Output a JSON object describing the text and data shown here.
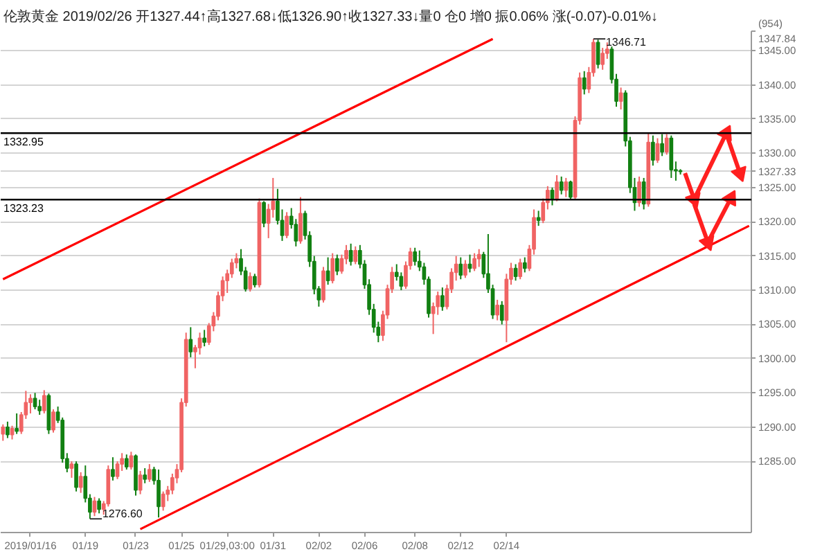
{
  "chart_data": {
    "type": "candlestick",
    "title": "伦敦黄金 2019/02/26 开1327.44↑高1327.68↓低1326.90↑收1327.33↓量0 仓0 增0 振0.06% 涨(-0.07)-0.01%↓",
    "categories": [
      null,
      null,
      null,
      null,
      null,
      null,
      "2019/01/16",
      null,
      null,
      null,
      null,
      null,
      null,
      null,
      null,
      null,
      null,
      null,
      "01/19",
      null,
      null,
      null,
      null,
      null,
      null,
      null,
      null,
      null,
      null,
      "01/23",
      null,
      null,
      null,
      null,
      null,
      null,
      null,
      null,
      null,
      "01/25",
      null,
      null,
      null,
      null,
      null,
      null,
      null,
      null,
      null,
      "01/29,03:00",
      null,
      null,
      null,
      null,
      null,
      null,
      null,
      null,
      null,
      "01/31",
      null,
      null,
      null,
      null,
      null,
      null,
      null,
      null,
      null,
      "02/02",
      null,
      null,
      null,
      null,
      null,
      null,
      null,
      null,
      null,
      "02/06",
      null,
      null,
      null,
      null,
      null,
      null,
      null,
      null,
      null,
      null,
      "02/08",
      null,
      null,
      null,
      null,
      null,
      null,
      null,
      null,
      null,
      "02/12",
      null,
      null,
      null,
      null,
      null,
      null,
      null,
      null,
      null,
      "02/14",
      null,
      null,
      null,
      null,
      null,
      null,
      null,
      null,
      null,
      null,
      null,
      null,
      null,
      null,
      null,
      null,
      null,
      null,
      null,
      null,
      null,
      null,
      null,
      null,
      null,
      null,
      null,
      null,
      null,
      null,
      null,
      null,
      null,
      null,
      null,
      null,
      null,
      null,
      null,
      null,
      null,
      null,
      null,
      null,
      null,
      null,
      null,
      null,
      null,
      null,
      null,
      null,
      null
    ],
    "ohlc": [
      [
        1289.0,
        1290.4,
        1288.0,
        1290.0
      ],
      [
        1290.0,
        1290.8,
        1288.4,
        1288.9
      ],
      [
        1288.9,
        1290.2,
        1288.2,
        1289.8
      ],
      [
        1289.8,
        1292.0,
        1289.0,
        1289.4
      ],
      [
        1289.4,
        1292.2,
        1289.0,
        1291.8
      ],
      [
        1291.8,
        1295.3,
        1291.2,
        1293.6
      ],
      [
        1293.6,
        1294.8,
        1292.0,
        1294.2
      ],
      [
        1294.2,
        1295.0,
        1292.6,
        1293.0
      ],
      [
        1293.0,
        1294.0,
        1291.8,
        1292.4
      ],
      [
        1292.4,
        1295.4,
        1292.0,
        1294.6
      ],
      [
        1294.6,
        1294.9,
        1289.0,
        1289.6
      ],
      [
        1289.6,
        1292.6,
        1289.2,
        1292.2
      ],
      [
        1292.2,
        1293.0,
        1290.6,
        1291.0
      ],
      [
        1291.0,
        1291.4,
        1284.8,
        1285.4
      ],
      [
        1285.4,
        1286.2,
        1283.4,
        1284.0
      ],
      [
        1284.0,
        1285.0,
        1282.6,
        1284.6
      ],
      [
        1284.6,
        1285.0,
        1280.6,
        1281.2
      ],
      [
        1281.2,
        1283.4,
        1280.4,
        1282.8
      ],
      [
        1282.8,
        1284.4,
        1279.0,
        1279.6
      ],
      [
        1279.6,
        1280.2,
        1276.6,
        1277.6
      ],
      [
        1277.6,
        1279.8,
        1277.0,
        1279.2
      ],
      [
        1279.2,
        1279.6,
        1277.4,
        1278.0
      ],
      [
        1278.0,
        1279.2,
        1277.2,
        1278.8
      ],
      [
        1278.8,
        1284.4,
        1278.4,
        1283.8
      ],
      [
        1283.8,
        1285.6,
        1282.2,
        1282.8
      ],
      [
        1282.8,
        1285.0,
        1282.4,
        1284.6
      ],
      [
        1284.6,
        1286.2,
        1283.6,
        1285.4
      ],
      [
        1285.4,
        1286.0,
        1283.8,
        1284.2
      ],
      [
        1284.2,
        1286.4,
        1283.8,
        1285.8
      ],
      [
        1285.8,
        1286.0,
        1280.0,
        1280.8
      ],
      [
        1280.8,
        1283.6,
        1280.2,
        1283.0
      ],
      [
        1283.0,
        1284.0,
        1281.8,
        1282.4
      ],
      [
        1282.4,
        1284.6,
        1282.0,
        1283.8
      ],
      [
        1283.8,
        1284.2,
        1281.6,
        1282.2
      ],
      [
        1282.2,
        1283.8,
        1276.8,
        1278.4
      ],
      [
        1278.4,
        1280.6,
        1277.8,
        1280.2
      ],
      [
        1280.2,
        1281.4,
        1279.2,
        1280.8
      ],
      [
        1280.8,
        1283.2,
        1280.2,
        1282.6
      ],
      [
        1282.6,
        1284.6,
        1281.8,
        1283.8
      ],
      [
        1283.8,
        1294.2,
        1283.4,
        1293.6
      ],
      [
        1293.6,
        1303.8,
        1293.0,
        1302.8
      ],
      [
        1302.8,
        1304.6,
        1300.2,
        1301.0
      ],
      [
        1301.0,
        1302.0,
        1298.6,
        1301.6
      ],
      [
        1301.6,
        1303.8,
        1300.6,
        1303.0
      ],
      [
        1303.0,
        1304.2,
        1301.8,
        1302.4
      ],
      [
        1302.4,
        1305.2,
        1302.0,
        1304.8
      ],
      [
        1304.8,
        1306.8,
        1304.0,
        1306.2
      ],
      [
        1306.2,
        1309.8,
        1305.6,
        1309.2
      ],
      [
        1309.2,
        1312.0,
        1308.4,
        1311.4
      ],
      [
        1311.4,
        1313.0,
        1309.6,
        1312.4
      ],
      [
        1312.4,
        1314.6,
        1311.8,
        1314.0
      ],
      [
        1314.0,
        1315.4,
        1313.2,
        1314.6
      ],
      [
        1314.6,
        1316.0,
        1312.2,
        1312.8
      ],
      [
        1312.8,
        1313.4,
        1309.8,
        1310.2
      ],
      [
        1310.2,
        1312.6,
        1309.8,
        1312.0
      ],
      [
        1312.0,
        1312.4,
        1310.4,
        1310.8
      ],
      [
        1310.8,
        1323.4,
        1310.4,
        1322.8
      ],
      [
        1322.8,
        1323.0,
        1319.2,
        1319.8
      ],
      [
        1319.8,
        1322.6,
        1317.6,
        1321.8
      ],
      [
        1321.8,
        1326.4,
        1320.6,
        1323.0
      ],
      [
        1323.0,
        1324.8,
        1319.6,
        1320.2
      ],
      [
        1320.2,
        1321.8,
        1317.2,
        1318.0
      ],
      [
        1318.0,
        1321.4,
        1317.6,
        1320.8
      ],
      [
        1320.8,
        1322.0,
        1319.0,
        1319.6
      ],
      [
        1319.6,
        1320.4,
        1316.4,
        1317.2
      ],
      [
        1317.2,
        1323.6,
        1316.8,
        1321.2
      ],
      [
        1321.2,
        1321.6,
        1317.4,
        1318.0
      ],
      [
        1318.0,
        1318.6,
        1313.4,
        1314.2
      ],
      [
        1314.2,
        1315.0,
        1309.4,
        1310.2
      ],
      [
        1310.2,
        1310.6,
        1307.6,
        1308.6
      ],
      [
        1308.6,
        1313.4,
        1308.2,
        1312.8
      ],
      [
        1312.8,
        1314.8,
        1310.8,
        1311.4
      ],
      [
        1311.4,
        1315.4,
        1311.0,
        1314.6
      ],
      [
        1314.6,
        1315.2,
        1312.2,
        1312.8
      ],
      [
        1312.8,
        1315.2,
        1312.4,
        1314.6
      ],
      [
        1314.6,
        1316.6,
        1313.8,
        1315.8
      ],
      [
        1315.8,
        1316.8,
        1313.6,
        1314.2
      ],
      [
        1314.2,
        1316.4,
        1313.8,
        1315.8
      ],
      [
        1315.8,
        1316.6,
        1313.2,
        1313.8
      ],
      [
        1313.8,
        1314.4,
        1310.2,
        1310.8
      ],
      [
        1310.8,
        1311.6,
        1306.4,
        1307.2
      ],
      [
        1307.2,
        1308.0,
        1303.8,
        1304.6
      ],
      [
        1304.6,
        1305.4,
        1302.4,
        1303.4
      ],
      [
        1303.4,
        1307.0,
        1302.6,
        1306.4
      ],
      [
        1306.4,
        1310.8,
        1305.8,
        1310.2
      ],
      [
        1310.2,
        1313.4,
        1309.6,
        1312.6
      ],
      [
        1312.6,
        1313.8,
        1311.4,
        1312.0
      ],
      [
        1312.0,
        1312.6,
        1310.0,
        1310.6
      ],
      [
        1310.6,
        1314.2,
        1310.2,
        1313.6
      ],
      [
        1313.6,
        1316.2,
        1313.0,
        1315.6
      ],
      [
        1315.6,
        1316.2,
        1313.6,
        1314.2
      ],
      [
        1314.2,
        1315.8,
        1312.8,
        1313.4
      ],
      [
        1313.4,
        1314.0,
        1310.8,
        1311.6
      ],
      [
        1311.6,
        1312.0,
        1306.0,
        1306.6
      ],
      [
        1306.6,
        1308.2,
        1303.6,
        1307.6
      ],
      [
        1307.6,
        1309.8,
        1306.4,
        1309.2
      ],
      [
        1309.2,
        1310.4,
        1307.0,
        1307.6
      ],
      [
        1307.6,
        1310.8,
        1307.2,
        1310.2
      ],
      [
        1310.2,
        1313.2,
        1309.6,
        1312.6
      ],
      [
        1312.6,
        1315.0,
        1311.4,
        1313.8
      ],
      [
        1313.8,
        1314.8,
        1311.6,
        1312.2
      ],
      [
        1312.2,
        1314.4,
        1311.8,
        1313.8
      ],
      [
        1313.8,
        1315.2,
        1312.6,
        1313.2
      ],
      [
        1313.2,
        1315.4,
        1312.8,
        1314.6
      ],
      [
        1314.6,
        1316.0,
        1313.4,
        1315.2
      ],
      [
        1315.2,
        1315.6,
        1311.8,
        1312.4
      ],
      [
        1312.4,
        1318.2,
        1309.6,
        1310.2
      ],
      [
        1310.2,
        1310.8,
        1305.8,
        1306.4
      ],
      [
        1306.4,
        1308.6,
        1305.6,
        1307.8
      ],
      [
        1307.8,
        1308.4,
        1305.0,
        1305.6
      ],
      [
        1305.6,
        1312.4,
        1302.4,
        1311.6
      ],
      [
        1311.6,
        1314.0,
        1310.8,
        1313.2
      ],
      [
        1313.2,
        1313.8,
        1311.4,
        1312.0
      ],
      [
        1312.0,
        1314.6,
        1311.6,
        1314.0
      ],
      [
        1314.0,
        1314.8,
        1312.6,
        1313.2
      ],
      [
        1313.2,
        1316.6,
        1312.8,
        1316.0
      ],
      [
        1316.0,
        1321.8,
        1315.2,
        1320.6
      ],
      [
        1320.6,
        1321.6,
        1319.4,
        1320.2
      ],
      [
        1320.2,
        1323.4,
        1319.8,
        1322.8
      ],
      [
        1322.8,
        1325.2,
        1321.8,
        1324.6
      ],
      [
        1324.6,
        1325.0,
        1322.4,
        1323.4
      ],
      [
        1323.4,
        1326.8,
        1323.0,
        1325.8
      ],
      [
        1325.8,
        1326.6,
        1324.0,
        1324.6
      ],
      [
        1324.6,
        1326.4,
        1323.6,
        1325.8
      ],
      [
        1325.8,
        1326.0,
        1323.2,
        1323.6
      ],
      [
        1323.6,
        1335.4,
        1323.2,
        1334.8
      ],
      [
        1334.8,
        1341.8,
        1334.2,
        1341.0
      ],
      [
        1341.0,
        1342.0,
        1338.6,
        1339.4
      ],
      [
        1339.4,
        1342.6,
        1338.8,
        1341.8
      ],
      [
        1341.8,
        1346.71,
        1341.2,
        1346.2
      ],
      [
        1346.2,
        1346.6,
        1342.4,
        1343.0
      ],
      [
        1343.0,
        1345.4,
        1342.2,
        1344.6
      ],
      [
        1344.6,
        1346.2,
        1343.8,
        1345.2
      ],
      [
        1345.2,
        1345.6,
        1340.2,
        1340.8
      ],
      [
        1340.8,
        1341.6,
        1336.8,
        1337.6
      ],
      [
        1337.6,
        1339.6,
        1336.4,
        1338.8
      ],
      [
        1338.8,
        1339.2,
        1331.0,
        1331.8
      ],
      [
        1331.8,
        1332.4,
        1324.2,
        1325.0
      ],
      [
        1325.0,
        1326.4,
        1321.6,
        1322.8
      ],
      [
        1322.8,
        1326.6,
        1322.2,
        1325.8
      ],
      [
        1325.8,
        1326.4,
        1321.8,
        1322.6
      ],
      [
        1322.6,
        1333.0,
        1322.2,
        1331.6
      ],
      [
        1331.6,
        1332.6,
        1328.2,
        1329.0
      ],
      [
        1329.0,
        1332.2,
        1328.6,
        1331.4
      ],
      [
        1331.4,
        1332.8,
        1329.6,
        1330.2
      ],
      [
        1330.2,
        1332.8,
        1329.8,
        1332.2
      ],
      [
        1332.2,
        1332.6,
        1326.4,
        1327.6
      ],
      [
        1327.6,
        1328.8,
        1326.0,
        1327.44
      ],
      [
        1327.44,
        1327.68,
        1326.9,
        1327.33
      ],
      null,
      null,
      null,
      null,
      null,
      null,
      null,
      null,
      null,
      null,
      null,
      null,
      null,
      null,
      null
    ],
    "colors": [
      "#f06464",
      "#128012",
      "#f06464",
      "#128012",
      "#f06464",
      "#f06464",
      "#f06464",
      "#128012",
      "#128012",
      "#f06464",
      "#128012",
      "#f06464",
      "#128012",
      "#128012",
      "#128012",
      "#f06464",
      "#128012",
      "#f06464",
      "#128012",
      "#128012",
      "#f06464",
      "#128012",
      "#f06464",
      "#f06464",
      "#128012",
      "#f06464",
      "#f06464",
      "#128012",
      "#f06464",
      "#128012",
      "#f06464",
      "#128012",
      "#f06464",
      "#128012",
      "#128012",
      "#f06464",
      "#f06464",
      "#f06464",
      "#f06464",
      "#f06464",
      "#f06464",
      "#128012",
      "#f06464",
      "#f06464",
      "#128012",
      "#f06464",
      "#f06464",
      "#f06464",
      "#f06464",
      "#f06464",
      "#f06464",
      "#f06464",
      "#128012",
      "#128012",
      "#f06464",
      "#128012",
      "#f06464",
      "#128012",
      "#f06464",
      "#f06464",
      "#128012",
      "#128012",
      "#f06464",
      "#128012",
      "#128012",
      "#f06464",
      "#128012",
      "#128012",
      "#128012",
      "#128012",
      "#f06464",
      "#128012",
      "#f06464",
      "#128012",
      "#f06464",
      "#f06464",
      "#128012",
      "#f06464",
      "#128012",
      "#128012",
      "#128012",
      "#128012",
      "#128012",
      "#f06464",
      "#f06464",
      "#f06464",
      "#128012",
      "#128012",
      "#f06464",
      "#f06464",
      "#128012",
      "#128012",
      "#128012",
      "#128012",
      "#f06464",
      "#f06464",
      "#128012",
      "#f06464",
      "#f06464",
      "#f06464",
      "#128012",
      "#f06464",
      "#128012",
      "#f06464",
      "#f06464",
      "#128012",
      "#128012",
      "#128012",
      "#f06464",
      "#128012",
      "#f06464",
      "#f06464",
      "#128012",
      "#f06464",
      "#128012",
      "#f06464",
      "#f06464",
      "#128012",
      "#f06464",
      "#f06464",
      "#128012",
      "#f06464",
      "#128012",
      "#f06464",
      "#128012",
      "#f06464",
      "#f06464",
      "#128012",
      "#f06464",
      "#f06464",
      "#128012",
      "#f06464",
      "#f06464",
      "#128012",
      "#128012",
      "#f06464",
      "#128012",
      "#128012",
      "#128012",
      "#f06464",
      "#128012",
      "#f06464",
      "#128012",
      "#f06464",
      "#128012",
      "#f06464",
      "#128012",
      "#128012",
      "#128012",
      null,
      null,
      null,
      null,
      null,
      null,
      null,
      null,
      null,
      null,
      null,
      null,
      null,
      null,
      null
    ],
    "ylim": [
      1274.6,
      1347.84
    ],
    "yticks": [
      {
        "value": 1285,
        "label": "1285.00"
      },
      {
        "value": 1290,
        "label": "1290.00"
      },
      {
        "value": 1295,
        "label": "1295.00"
      },
      {
        "value": 1300,
        "label": "1300.00"
      },
      {
        "value": 1305,
        "label": "1305.00"
      },
      {
        "value": 1310,
        "label": "1310.00"
      },
      {
        "value": 1315,
        "label": "1315.00"
      },
      {
        "value": 1320,
        "label": "1320.00"
      },
      {
        "value": 1325,
        "label": "1325.00"
      },
      {
        "value": 1327.33,
        "label": "1327.33"
      },
      {
        "value": 1330,
        "label": "1330.00"
      },
      {
        "value": 1335,
        "label": "1335.00"
      },
      {
        "value": 1340,
        "label": "1340.00"
      },
      {
        "value": 1345,
        "label": "1345.00"
      },
      {
        "value": 1347.84,
        "label": "(954)\n1347.84"
      }
    ],
    "grid": "y",
    "ref_lines": [
      {
        "axis": "y",
        "value": 1332.95,
        "label": "1332.95",
        "color": "#000000"
      },
      {
        "axis": "y",
        "value": 1323.23,
        "label": "1323.23",
        "color": "#000000"
      }
    ],
    "annotations": [
      "1346.71",
      "1276.60"
    ],
    "series": [
      {
        "type": "line",
        "color": "#ff0000",
        "values": [
          1311.6,
          null,
          null,
          null,
          null,
          null,
          null,
          null,
          null,
          null,
          null,
          null,
          null,
          null,
          null,
          null,
          null,
          null,
          null,
          null,
          null,
          null,
          null,
          null,
          null,
          null,
          null,
          null,
          null,
          null,
          null,
          null,
          null,
          null,
          null,
          null,
          null,
          null,
          null,
          null,
          null,
          null,
          null,
          null,
          null,
          null,
          null,
          null,
          null,
          null,
          null,
          null,
          null,
          null,
          null,
          null,
          null,
          null,
          null,
          null,
          null,
          null,
          null,
          null,
          null,
          null,
          null,
          null,
          null,
          null,
          null,
          null,
          null,
          null,
          null,
          null,
          null,
          null,
          null,
          null,
          null,
          null,
          null,
          null,
          null,
          null,
          null,
          null,
          null,
          null,
          null,
          null,
          null,
          null,
          null,
          null,
          null,
          null,
          null,
          null,
          null,
          null,
          null,
          null,
          null,
          null,
          null,
          1346.7,
          null,
          null,
          null,
          null,
          null,
          null,
          null,
          null,
          null,
          null,
          null,
          null,
          null,
          null,
          null,
          null,
          null,
          null,
          null,
          null,
          null,
          null,
          null,
          null,
          null,
          null,
          null,
          null,
          null,
          null,
          null,
          null,
          null,
          null,
          null,
          null,
          null,
          null,
          null,
          null,
          null,
          null,
          null,
          null,
          null,
          null,
          null,
          null,
          null,
          null,
          null,
          null,
          null,
          null,
          null,
          null
        ]
      },
      {
        "type": "line",
        "color": "#ff0000",
        "values": [
          null,
          null,
          null,
          null,
          null,
          null,
          null,
          null,
          null,
          null,
          null,
          null,
          null,
          null,
          null,
          null,
          null,
          null,
          null,
          null,
          null,
          null,
          null,
          null,
          null,
          null,
          null,
          null,
          null,
          null,
          1275.1,
          null,
          null,
          null,
          null,
          null,
          null,
          null,
          null,
          null,
          null,
          null,
          null,
          null,
          null,
          null,
          null,
          null,
          null,
          null,
          null,
          null,
          null,
          null,
          null,
          null,
          null,
          null,
          null,
          null,
          null,
          null,
          null,
          null,
          null,
          null,
          null,
          null,
          null,
          null,
          null,
          null,
          null,
          null,
          null,
          null,
          null,
          null,
          null,
          null,
          null,
          null,
          null,
          null,
          null,
          null,
          null,
          null,
          null,
          null,
          null,
          null,
          null,
          null,
          null,
          null,
          null,
          null,
          null,
          null,
          null,
          null,
          null,
          null,
          null,
          null,
          null,
          null,
          null,
          null,
          null,
          null,
          null,
          null,
          null,
          null,
          null,
          null,
          null,
          null,
          null,
          null,
          null,
          null,
          null,
          null,
          null,
          null,
          null,
          null,
          null,
          null,
          null,
          null,
          null,
          null,
          null,
          null,
          null,
          null,
          null,
          null,
          null,
          null,
          null,
          null,
          null,
          null,
          null,
          null,
          null,
          null,
          null,
          null,
          null,
          null,
          null,
          null,
          null,
          null,
          null,
          null,
          null,
          1319.4
        ]
      },
      {
        "type": "line",
        "color": "#ff2020",
        "marker": "triangle",
        "values": [
          null,
          null,
          null,
          null,
          null,
          null,
          null,
          null,
          null,
          null,
          null,
          null,
          null,
          null,
          null,
          null,
          null,
          null,
          null,
          null,
          null,
          null,
          null,
          null,
          null,
          null,
          null,
          null,
          null,
          null,
          null,
          null,
          null,
          null,
          null,
          null,
          null,
          null,
          null,
          null,
          null,
          null,
          null,
          null,
          null,
          null,
          null,
          null,
          null,
          null,
          null,
          null,
          null,
          null,
          null,
          null,
          null,
          null,
          null,
          null,
          null,
          null,
          null,
          null,
          null,
          null,
          null,
          null,
          null,
          null,
          null,
          null,
          null,
          null,
          null,
          null,
          null,
          null,
          null,
          null,
          null,
          null,
          null,
          null,
          null,
          null,
          null,
          null,
          null,
          null,
          null,
          null,
          null,
          null,
          null,
          null,
          null,
          null,
          null,
          null,
          null,
          null,
          null,
          null,
          null,
          null,
          null,
          null,
          null,
          null,
          null,
          null,
          null,
          null,
          null,
          null,
          null,
          null,
          null,
          null,
          null,
          null,
          null,
          null,
          null,
          null,
          null,
          null,
          null,
          null,
          null,
          null,
          null,
          null,
          null,
          null,
          null,
          null,
          null,
          null,
          null,
          null,
          null,
          null,
          null,
          null,
          null,
          null,
          null,
          1327.1,
          null,
          1323.3,
          null,
          null,
          null,
          null,
          null,
          null,
          1332.9,
          null,
          null,
          1327.1,
          null,
          null
        ]
      },
      {
        "type": "line",
        "color": "#ff2020",
        "marker": "triangle",
        "values": [
          null,
          null,
          null,
          null,
          null,
          null,
          null,
          null,
          null,
          null,
          null,
          null,
          null,
          null,
          null,
          null,
          null,
          null,
          null,
          null,
          null,
          null,
          null,
          null,
          null,
          null,
          null,
          null,
          null,
          null,
          null,
          null,
          null,
          null,
          null,
          null,
          null,
          null,
          null,
          null,
          null,
          null,
          null,
          null,
          null,
          null,
          null,
          null,
          null,
          null,
          null,
          null,
          null,
          null,
          null,
          null,
          null,
          null,
          null,
          null,
          null,
          null,
          null,
          null,
          null,
          null,
          null,
          null,
          null,
          null,
          null,
          null,
          null,
          null,
          null,
          null,
          null,
          null,
          null,
          null,
          null,
          null,
          null,
          null,
          null,
          null,
          null,
          null,
          null,
          null,
          null,
          null,
          null,
          null,
          null,
          null,
          null,
          null,
          null,
          null,
          null,
          null,
          null,
          null,
          null,
          null,
          null,
          null,
          null,
          null,
          null,
          null,
          null,
          null,
          null,
          null,
          null,
          null,
          null,
          null,
          null,
          null,
          null,
          null,
          null,
          null,
          null,
          null,
          null,
          null,
          null,
          null,
          null,
          null,
          null,
          null,
          null,
          null,
          null,
          null,
          null,
          null,
          null,
          null,
          null,
          null,
          null,
          null,
          null,
          null,
          null,
          1322.6,
          null,
          null,
          1317.0,
          null,
          null,
          null,
          null,
          1323.4,
          null,
          null,
          null,
          null
        ]
      }
    ]
  }
}
